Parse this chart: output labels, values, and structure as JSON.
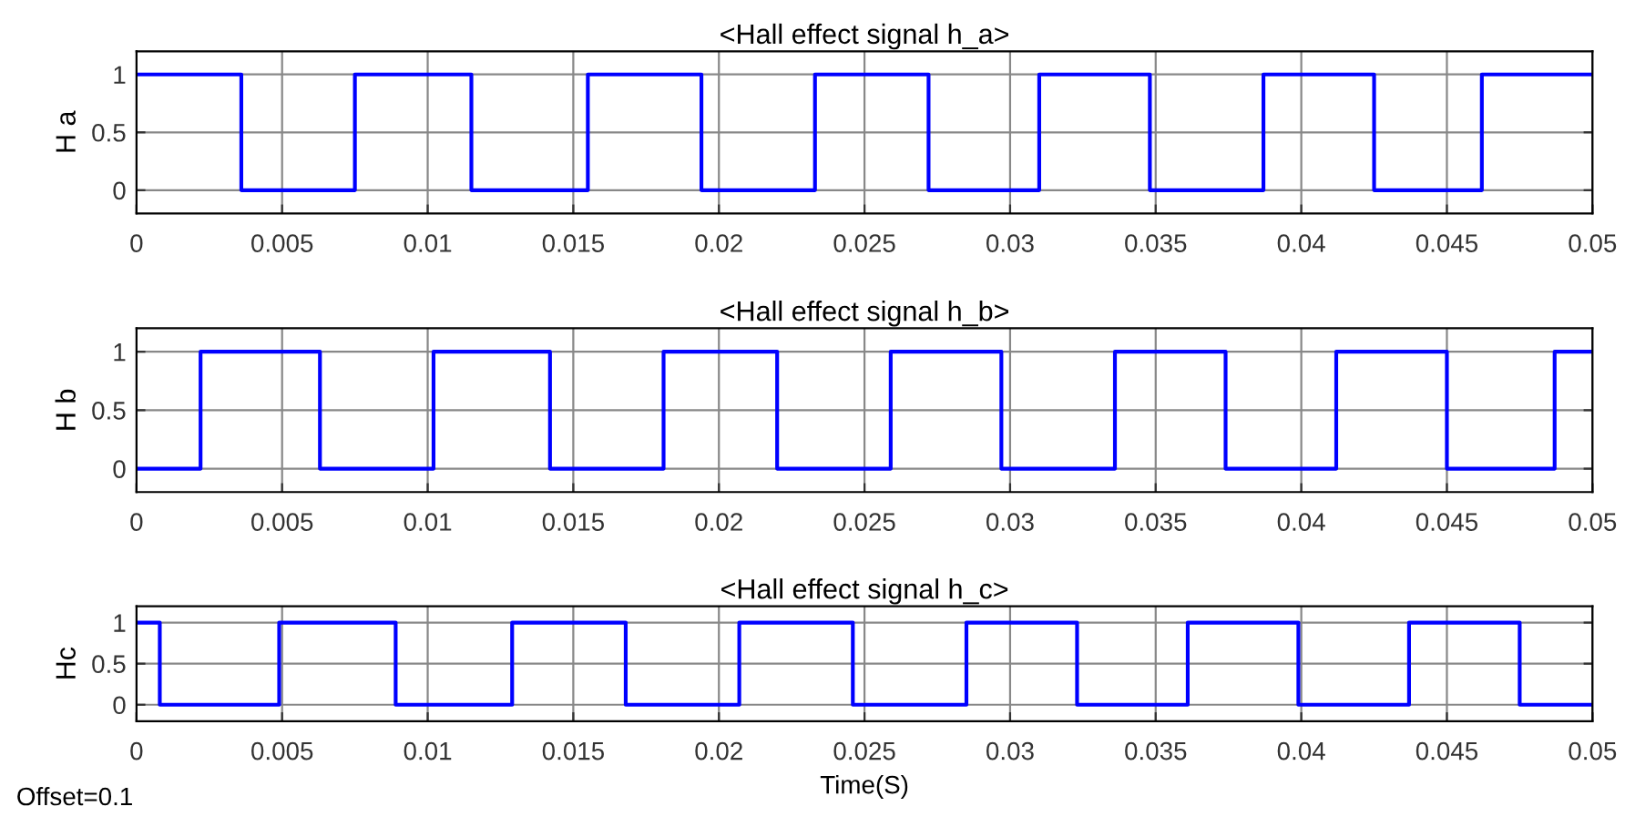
{
  "chart_data": [
    {
      "type": "step",
      "title": "<Hall effect signal h_a>",
      "ylabel": "H a",
      "x": [
        0,
        0.0036,
        0.0075,
        0.0115,
        0.0155,
        0.0194,
        0.0233,
        0.0272,
        0.031,
        0.0348,
        0.0387,
        0.0425,
        0.0462,
        0.05
      ],
      "series": [
        {
          "color": "#0000ff",
          "values": [
            1,
            0,
            1,
            0,
            1,
            0,
            1,
            0,
            1,
            0,
            1,
            0,
            1,
            1
          ]
        }
      ],
      "xlim": [
        0,
        0.05
      ],
      "xticks": [
        0,
        0.005,
        0.01,
        0.015,
        0.02,
        0.025,
        0.03,
        0.035,
        0.04,
        0.045,
        0.05
      ],
      "ylim": [
        -0.2,
        1.2
      ],
      "yticks": [
        0,
        0.5,
        1
      ],
      "grid": true
    },
    {
      "type": "step",
      "title": "<Hall effect signal h_b>",
      "ylabel": "H b",
      "x": [
        0,
        0.0022,
        0.0063,
        0.0102,
        0.0142,
        0.0181,
        0.022,
        0.0259,
        0.0297,
        0.0336,
        0.0374,
        0.0412,
        0.045,
        0.0487,
        0.05
      ],
      "series": [
        {
          "color": "#0000ff",
          "values": [
            0,
            1,
            0,
            1,
            0,
            1,
            0,
            1,
            0,
            1,
            0,
            1,
            0,
            1,
            1
          ]
        }
      ],
      "xlim": [
        0,
        0.05
      ],
      "xticks": [
        0,
        0.005,
        0.01,
        0.015,
        0.02,
        0.025,
        0.03,
        0.035,
        0.04,
        0.045,
        0.05
      ],
      "ylim": [
        -0.2,
        1.2
      ],
      "yticks": [
        0,
        0.5,
        1
      ],
      "grid": true
    },
    {
      "type": "step",
      "title": "<Hall effect signal h_c>",
      "ylabel": "Hc",
      "xlabel": "Time(S)",
      "annotations": [
        "Offset=0.1"
      ],
      "x": [
        0,
        0.0008,
        0.0049,
        0.0089,
        0.0129,
        0.0168,
        0.0207,
        0.0246,
        0.0285,
        0.0323,
        0.0361,
        0.0399,
        0.0437,
        0.0475,
        0.05
      ],
      "series": [
        {
          "color": "#0000ff",
          "values": [
            1,
            0,
            1,
            0,
            1,
            0,
            1,
            0,
            1,
            0,
            1,
            0,
            1,
            0,
            0
          ]
        }
      ],
      "xlim": [
        0,
        0.05
      ],
      "xticks": [
        0,
        0.005,
        0.01,
        0.015,
        0.02,
        0.025,
        0.03,
        0.035,
        0.04,
        0.045,
        0.05
      ],
      "ylim": [
        -0.2,
        1.2
      ],
      "yticks": [
        0,
        0.5,
        1
      ],
      "grid": true
    }
  ]
}
